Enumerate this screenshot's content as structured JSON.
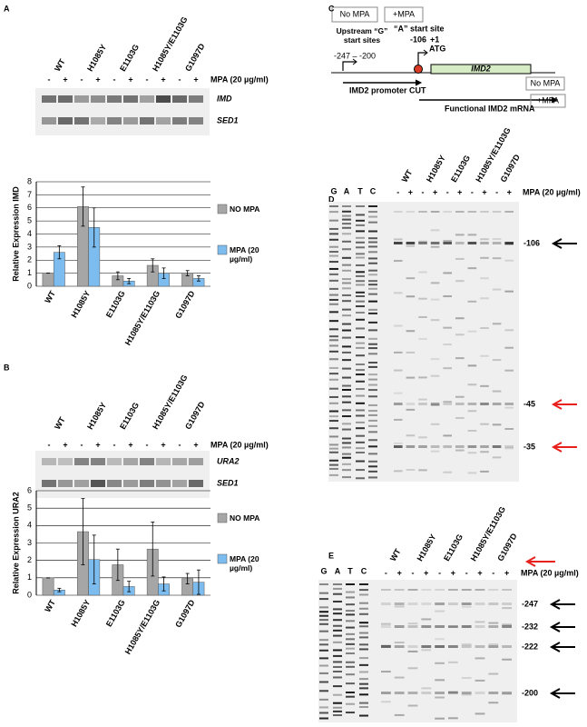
{
  "panel_labels": [
    "A",
    "B",
    "C",
    "D",
    "E"
  ],
  "gels": [
    {
      "lanes": [
        "WT",
        "H1085Y",
        "E1103G",
        "H1085Y/E1103G",
        "G1097D"
      ],
      "signs": [
        "-",
        "+",
        "-",
        "+",
        "-",
        "+",
        "-",
        "+",
        "-",
        "+"
      ],
      "treatment": "MPA (20 µg/ml)",
      "bands": [
        "IMD",
        "SED1"
      ]
    },
    {
      "lanes": [
        "WT",
        "H1085Y",
        "E1103G",
        "H1085Y/E1103G",
        "G1097D"
      ],
      "signs": [
        "-",
        "+",
        "-",
        "+",
        "-",
        "+",
        "-",
        "+",
        "-",
        "+"
      ],
      "treatment": "MPA (20 µg/ml)",
      "bands": [
        "URA2",
        "SED1"
      ]
    },
    {
      "ladder": [
        "G",
        "A",
        "T",
        "C"
      ],
      "lanes": [
        "WT",
        "H1085Y",
        "E1103G",
        "H1085Y/E1103G",
        "G1097D"
      ],
      "signs": [
        "-",
        "+",
        "-",
        "+",
        "-",
        "+",
        "-",
        "+",
        "-",
        "+"
      ],
      "treatment": "MPA (20 µg/ml)",
      "markers": [
        "-106",
        "-45",
        "-35"
      ],
      "marker_colors": [
        "#000000",
        "#e8201c",
        "#e8201c"
      ]
    },
    {
      "ladder": [
        "G",
        "A",
        "T",
        "C"
      ],
      "lanes": [
        "WT",
        "H1085Y",
        "E1103G",
        "H1085Y/E1103G",
        "G1097D"
      ],
      "signs": [
        "-",
        "+",
        "-",
        "+",
        "-",
        "+",
        "-",
        "+",
        "-",
        "+"
      ],
      "treatment": "MPA (20 µg/ml)",
      "markers": [
        "-247",
        "-232",
        "-222",
        "-200"
      ],
      "marker_colors": [
        "#000000",
        "#000000",
        "#000000",
        "#000000"
      ]
    }
  ],
  "diagram": {
    "box_no_mpa": "No MPA",
    "box_mpa": "+MPA",
    "upstream": "Upstream “G” start sites",
    "upstream_range": "-247 – -200",
    "a_site": "“A” start site",
    "pos_106": "-106",
    "pos_1": "+1",
    "atg": "ATG",
    "gene": "IMD2",
    "cut": "IMD2 promoter CUT",
    "mrna": "Functional IMD2 mRNA",
    "cut_box": "No MPA",
    "mrna_box": "+MPA"
  },
  "chart_data": [
    {
      "type": "bar",
      "ylabel": "Relative Expression IMD",
      "categories": [
        "WT",
        "H1085Y",
        "E1103G",
        "H1085Y/E1103G",
        "G1097D"
      ],
      "ylim": [
        0,
        8
      ],
      "yticks": [
        0,
        1,
        2,
        3,
        4,
        5,
        6,
        7,
        8
      ],
      "grid": true,
      "series": [
        {
          "name": "NO MPA",
          "color": "#a6a6a6",
          "values": [
            1,
            6.1,
            0.8,
            1.6,
            1.0
          ],
          "error": [
            0,
            1.5,
            0.3,
            0.5,
            0.2
          ]
        },
        {
          "name": "MPA (20 µg/ml)",
          "color": "#7cbcee",
          "values": [
            2.6,
            4.5,
            0.4,
            1.0,
            0.6
          ],
          "error": [
            0.5,
            1.5,
            0.2,
            0.4,
            0.2
          ]
        }
      ]
    },
    {
      "type": "bar",
      "ylabel": "Relative Expression URA2",
      "categories": [
        "WT",
        "H1085Y",
        "E1103G",
        "H1085Y/E1103G",
        "G1097D"
      ],
      "ylim": [
        0,
        6
      ],
      "yticks": [
        0,
        1,
        2,
        3,
        4,
        5,
        6
      ],
      "grid": true,
      "series": [
        {
          "name": "NO MPA",
          "color": "#a6a6a6",
          "values": [
            1,
            3.65,
            1.75,
            2.65,
            0.95
          ],
          "error": [
            0,
            1.9,
            0.9,
            1.55,
            0.3
          ]
        },
        {
          "name": "MPA (20 µg/ml)",
          "color": "#7cbcee",
          "values": [
            0.3,
            2.05,
            0.5,
            0.65,
            0.75
          ],
          "error": [
            0.1,
            1.4,
            0.3,
            0.4,
            0.7
          ]
        }
      ]
    }
  ]
}
